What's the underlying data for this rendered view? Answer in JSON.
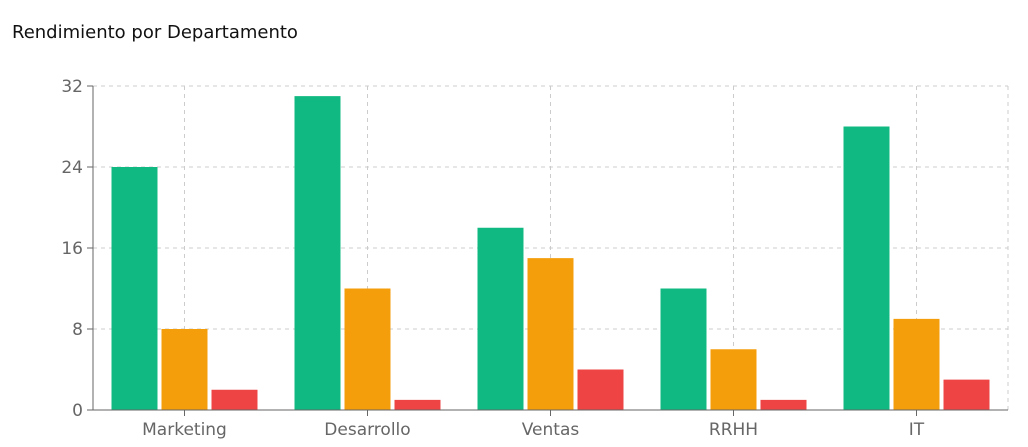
{
  "chart_data": {
    "type": "bar",
    "title": "Rendimiento por Departamento",
    "xlabel": "",
    "ylabel": "",
    "categories": [
      "Marketing",
      "Desarrollo",
      "Ventas",
      "RRHH",
      "IT"
    ],
    "series": [
      {
        "values": [
          24,
          31,
          18,
          12,
          28
        ],
        "color": "#10b981"
      },
      {
        "values": [
          8,
          12,
          15,
          6,
          9
        ],
        "color": "#f59e0b"
      },
      {
        "values": [
          2,
          1,
          4,
          1,
          3
        ],
        "color": "#ef4444"
      }
    ],
    "ylim": [
      0,
      32
    ],
    "yticks": [
      0,
      8,
      16,
      24,
      32
    ],
    "grid": true,
    "legend": "none"
  }
}
